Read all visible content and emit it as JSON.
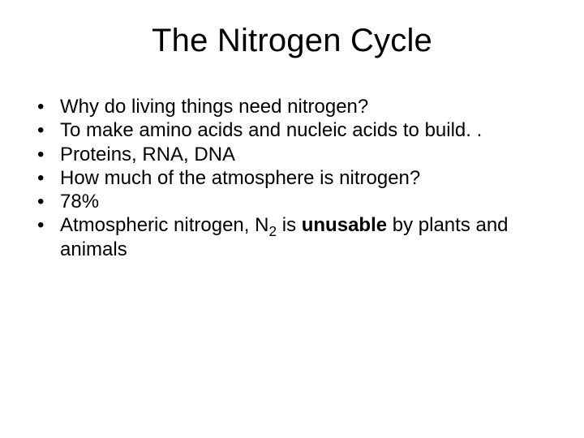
{
  "slide": {
    "title": "The Nitrogen Cycle",
    "title_fontsize": 40,
    "body_fontsize": 24,
    "background_color": "#ffffff",
    "text_color": "#000000",
    "font_family": "Arial",
    "bullets": [
      {
        "text": "Why do living things need nitrogen?"
      },
      {
        "text": "To make amino acids and nucleic acids to build. ."
      },
      {
        "text": "Proteins, RNA, DNA"
      },
      {
        "text": "How much of the atmosphere is nitrogen?"
      },
      {
        "text": "78%"
      },
      {
        "parts": [
          {
            "t": "Atmospheric nitrogen, N"
          },
          {
            "t": "2",
            "sub": true
          },
          {
            "t": " is "
          },
          {
            "t": "unusable",
            "bold": true
          },
          {
            "t": " by plants and animals"
          }
        ]
      }
    ],
    "bullet_marker": "•"
  }
}
